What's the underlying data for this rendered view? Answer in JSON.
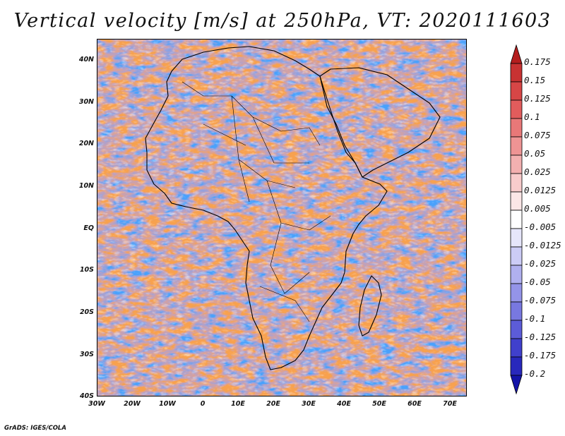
{
  "title": "Vertical velocity [m/s] at 250hPa, VT: 2020111603",
  "credit": "GrADS: IGES/COLA",
  "lat_labels": [
    "40N",
    "30N",
    "20N",
    "10N",
    "EQ",
    "10S",
    "20S",
    "30S",
    "40S"
  ],
  "lon_labels": [
    "30W",
    "20W",
    "10W",
    "0",
    "10E",
    "20E",
    "30E",
    "40E",
    "50E",
    "60E",
    "70E"
  ],
  "map_extent": {
    "lon_min": -30,
    "lon_max": 75,
    "lat_min": -40,
    "lat_max": 45
  },
  "colorbar": {
    "labels": [
      "0.175",
      "0.15",
      "0.125",
      "0.1",
      "0.075",
      "0.05",
      "0.025",
      "0.0125",
      "0.005",
      "-0.005",
      "-0.0125",
      "-0.025",
      "-0.05",
      "-0.075",
      "-0.1",
      "-0.125",
      "-0.175",
      "-0.2"
    ],
    "colors": [
      "#b41e1e",
      "#c83232",
      "#d74646",
      "#e15c5c",
      "#e87878",
      "#ee9494",
      "#f3b0b0",
      "#f8cccc",
      "#fbe6e6",
      "#ffffff",
      "#e6e6fb",
      "#ccccf6",
      "#b0b0ef",
      "#9494e8",
      "#7878e0",
      "#5c5cd8",
      "#4040cc",
      "#2828bc",
      "#1414a8"
    ]
  },
  "field_colors": {
    "positive": "#e06060",
    "negative": "#6a6ad8",
    "neutral": "#f2f2fa",
    "coastline": "#000000"
  }
}
